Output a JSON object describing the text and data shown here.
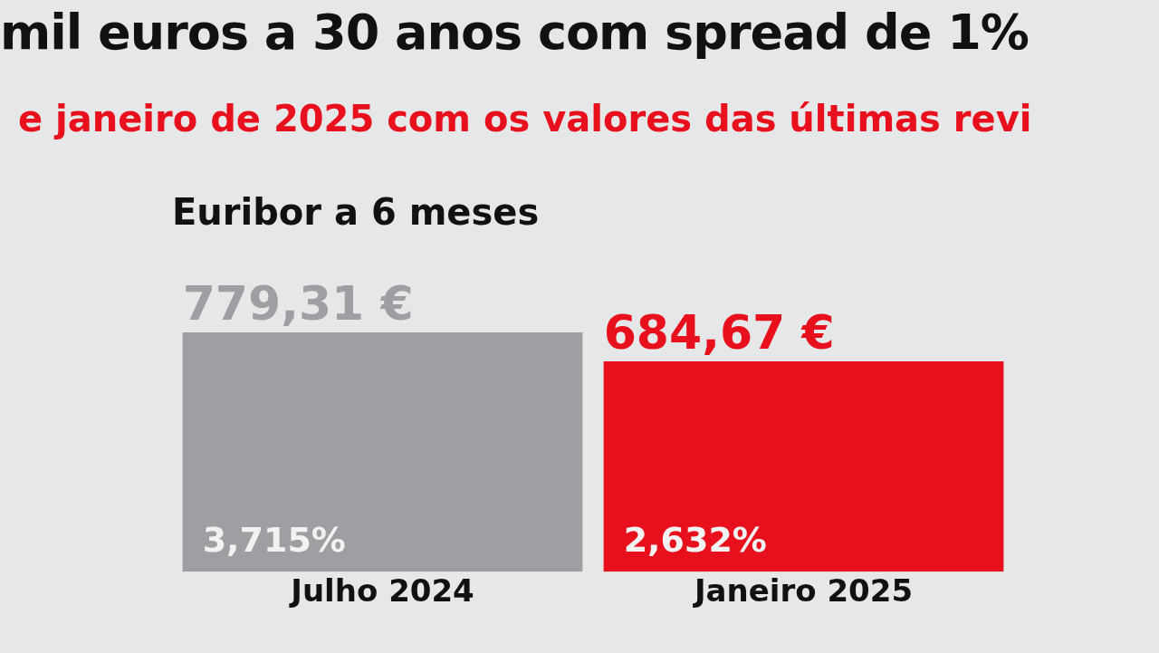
{
  "chart_data": {
    "type": "bar",
    "title": "mil euros a 30 anos com spread de 1%",
    "subtitle": "e janeiro de 2025 com os valores das últimas revi",
    "categories": [
      "Julho 2024",
      "Janeiro 2025"
    ],
    "values": [
      779.31,
      684.67
    ],
    "colors": [
      "#9d9fa2",
      "#e8101c"
    ],
    "value_labels": [
      "779,31 €",
      "684,67 €"
    ],
    "annotations": [
      "Euribor a 6 meses",
      "3,715%",
      "2,632%"
    ],
    "grid": false,
    "legend": false,
    "tick_labels": "x"
  }
}
